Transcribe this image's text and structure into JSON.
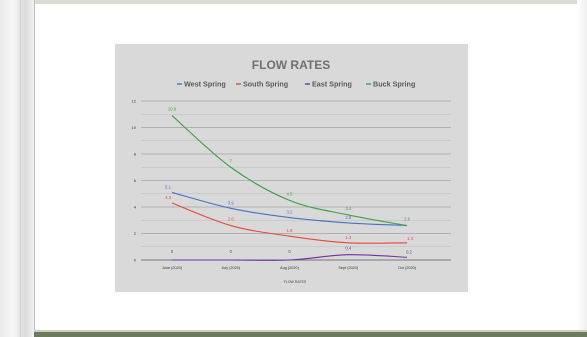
{
  "chart_data": {
    "type": "line",
    "title": "FLOW RATES",
    "xlabel": "FLOW RATES",
    "ylabel": "",
    "ylim": [
      0,
      12
    ],
    "yticks": [
      0,
      2,
      4,
      6,
      8,
      10,
      12
    ],
    "grid": true,
    "legend_position": "top",
    "categories": [
      "June (2020)",
      "July (2020)",
      "Aug (2020)",
      "Sept (2020)",
      "Oct (2020)"
    ],
    "series": [
      {
        "name": "West Spring",
        "color": "#4472c4",
        "values": [
          5.1,
          3.9,
          3.2,
          2.8,
          2.6
        ],
        "labels": [
          "5.1",
          "3.9",
          "3.2",
          "2.8",
          ""
        ]
      },
      {
        "name": "South Spring",
        "color": "#e8463a",
        "values": [
          4.3,
          2.6,
          1.8,
          1.3,
          1.3
        ],
        "labels": [
          "4.3",
          "2.6",
          "1.8",
          "1.3",
          "1.3"
        ]
      },
      {
        "name": "East Spring",
        "color": "#7030a0",
        "values": [
          0,
          0,
          0,
          0.4,
          0.2
        ],
        "labels": [
          "0",
          "0",
          "0",
          "0.4",
          "0.2"
        ]
      },
      {
        "name": "Buck Spring",
        "color": "#3aa048",
        "values": [
          10.9,
          7,
          4.5,
          3.4,
          2.6
        ],
        "labels": [
          "10.9",
          "7",
          "4.5",
          "3.4",
          "2.6"
        ]
      }
    ]
  }
}
